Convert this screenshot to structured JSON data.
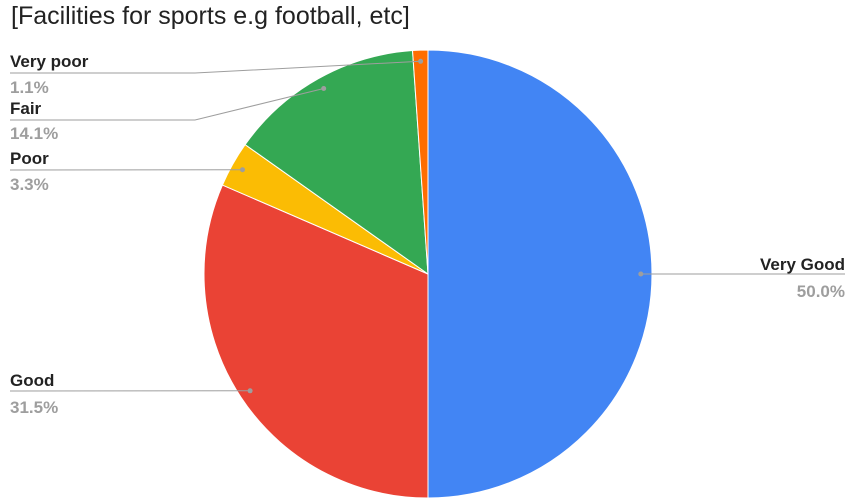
{
  "chart_data": {
    "type": "pie",
    "title": "[Facilities for sports e.g football, etc]",
    "slices": [
      {
        "label": "Very Good",
        "value": 50.0,
        "display": "50.0%",
        "color": "#4285f4"
      },
      {
        "label": "Good",
        "value": 31.5,
        "display": "31.5%",
        "color": "#ea4335"
      },
      {
        "label": "Poor",
        "value": 3.3,
        "display": "3.3%",
        "color": "#fbbc04"
      },
      {
        "label": "Fair",
        "value": 14.1,
        "display": "14.1%",
        "color": "#34a853"
      },
      {
        "label": "Very poor",
        "value": 1.1,
        "display": "1.1%",
        "color": "#ff6d01"
      }
    ],
    "start_angle": "12 o'clock",
    "direction": "clockwise",
    "legend": "none",
    "labels": "outside with leader lines"
  }
}
